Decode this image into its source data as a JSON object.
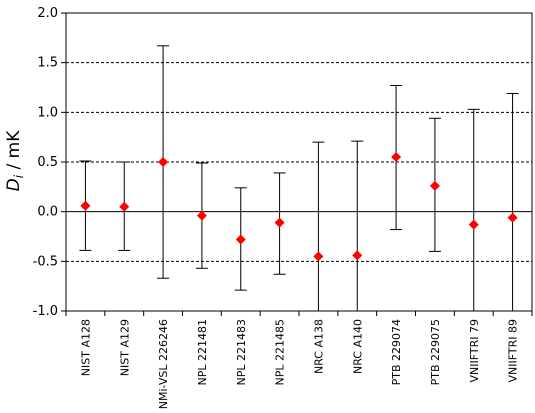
{
  "chart_data": {
    "type": "scatter",
    "title": "",
    "xlabel": "",
    "ylabel": {
      "symbol": "D",
      "subscript": "i",
      "unit": " / mK"
    },
    "ylim": [
      -1.0,
      2.0
    ],
    "yticks": [
      "-1.0",
      "-0.5",
      "0.0",
      "0.5",
      "1.0",
      "1.5",
      "2.0"
    ],
    "grid": "horizontal dashed at ±0.5, 1.0, 1.5; solid zero line",
    "categories": [
      "NIST A128",
      "NIST A129",
      "NMi-VSL 226246",
      "NPL 221481",
      "NPL 221483",
      "NPL 221485",
      "NRC A138",
      "NRC A140",
      "PTB 229074",
      "PTB 229075",
      "VNIIFTRI 79",
      "VNIIFTRI 89"
    ],
    "values": [
      0.06,
      0.05,
      0.5,
      -0.04,
      -0.28,
      -0.11,
      -0.45,
      -0.44,
      0.55,
      0.26,
      -0.13,
      -0.06
    ],
    "err_low": [
      -0.39,
      -0.39,
      -0.67,
      -0.57,
      -0.79,
      -0.63,
      -1.0,
      -1.0,
      -0.18,
      -0.4,
      -1.0,
      -1.0
    ],
    "err_high": [
      0.51,
      0.5,
      1.67,
      0.49,
      0.24,
      0.39,
      0.7,
      0.71,
      1.27,
      0.94,
      1.03,
      1.19
    ],
    "marker_color": "#ff0000",
    "errorbar_color": "#000000"
  }
}
